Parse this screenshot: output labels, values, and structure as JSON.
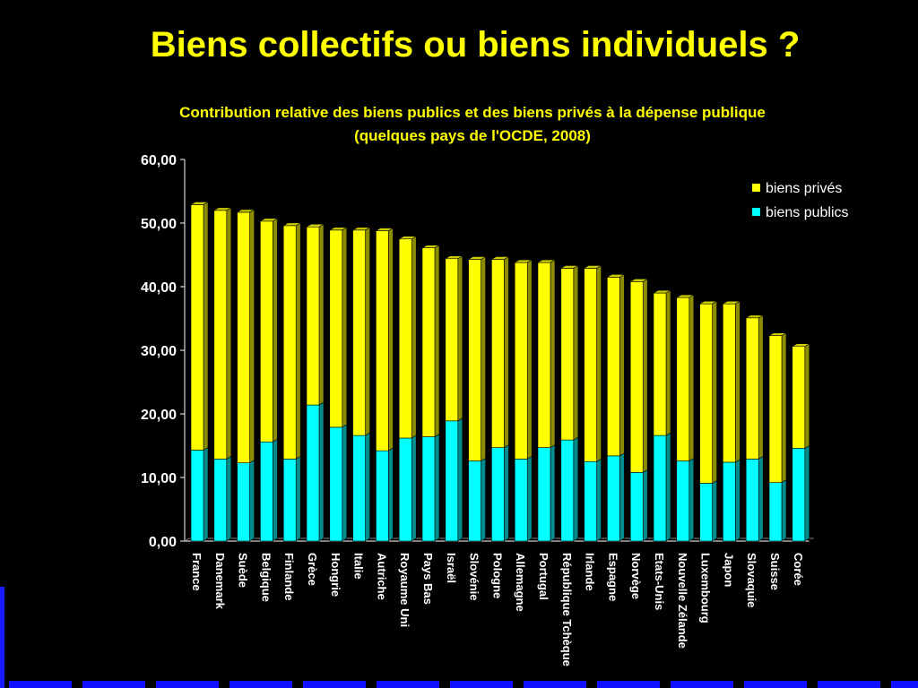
{
  "slide_title": "Biens collectifs ou biens individuels ?",
  "colors": {
    "background": "#000000",
    "title": "#ffff00",
    "text": "#ffffff",
    "prives": "#ffff00",
    "publics": "#00ffff",
    "accent_blue": "#1010ff"
  },
  "chart_data": {
    "type": "bar",
    "stacked": true,
    "title": "Contribution relative des biens publics et des biens privés à la dépense publique",
    "subtitle": "(quelques pays de l'OCDE, 2008)",
    "ylim": [
      0,
      60
    ],
    "yticks": [
      "0,00",
      "10,00",
      "20,00",
      "30,00",
      "40,00",
      "50,00",
      "60,00"
    ],
    "legend_position": "top-right",
    "categories": [
      "France",
      "Danemark",
      "Suède",
      "Belgique",
      "Finlande",
      "Grèce",
      "Hongrie",
      "Italie",
      "Autriche",
      "Royaume Uni",
      "Pays Bas",
      "Israël",
      "Slovénie",
      "Pologne",
      "Allemagne",
      "Portugal",
      "République Tchèque",
      "Irlande",
      "Espagne",
      "Norvège",
      "Etats-Unis",
      "Nouvelle Zélande",
      "Luxembourg",
      "Japon",
      "Slovaquie",
      "Suisse",
      "Corée"
    ],
    "series": [
      {
        "name": "biens publics",
        "values": [
          14.3,
          12.9,
          12.3,
          15.6,
          12.9,
          21.4,
          17.9,
          16.6,
          14.2,
          16.2,
          16.4,
          18.9,
          12.6,
          14.7,
          12.9,
          14.7,
          15.9,
          12.5,
          13.4,
          10.8,
          16.6,
          12.6,
          9.1,
          12.4,
          12.9,
          9.2,
          14.6
        ]
      },
      {
        "name": "biens privés",
        "values": [
          38.6,
          39.1,
          39.4,
          34.7,
          36.7,
          28.0,
          31.0,
          32.3,
          34.6,
          31.3,
          29.7,
          25.5,
          31.7,
          29.6,
          30.9,
          29.1,
          27.0,
          30.4,
          28.1,
          30.0,
          22.4,
          25.7,
          28.2,
          24.9,
          22.2,
          23.1,
          16.0
        ]
      }
    ]
  }
}
